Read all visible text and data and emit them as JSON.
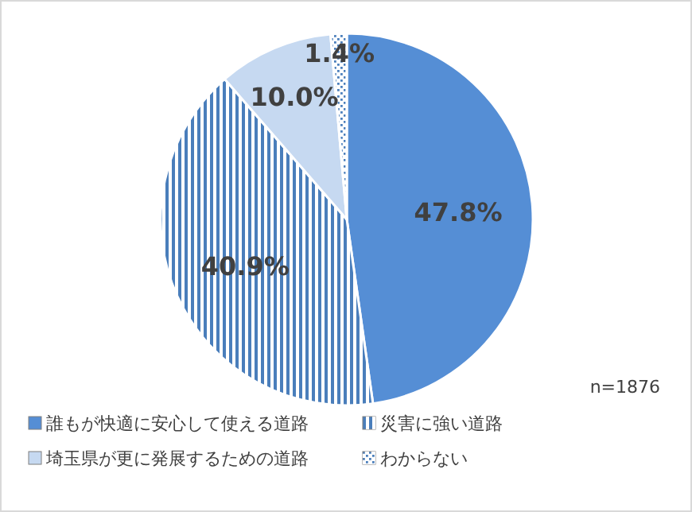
{
  "chart_data": {
    "type": "pie",
    "categories": [
      "誰もが快適に安心して使える道路",
      "災害に強い道路",
      "埼玉県が更に発展するための道路",
      "わからない"
    ],
    "values": [
      47.8,
      40.9,
      10.0,
      1.4
    ],
    "value_labels": [
      "47.8%",
      "40.9%",
      "10.0%",
      "1.4%"
    ],
    "colors": [
      "#558ed5",
      "#4a7ebb",
      "#c6d9f1",
      "#4a7ebb"
    ],
    "annotations": [
      "n=1876"
    ],
    "legend": "bottom"
  }
}
